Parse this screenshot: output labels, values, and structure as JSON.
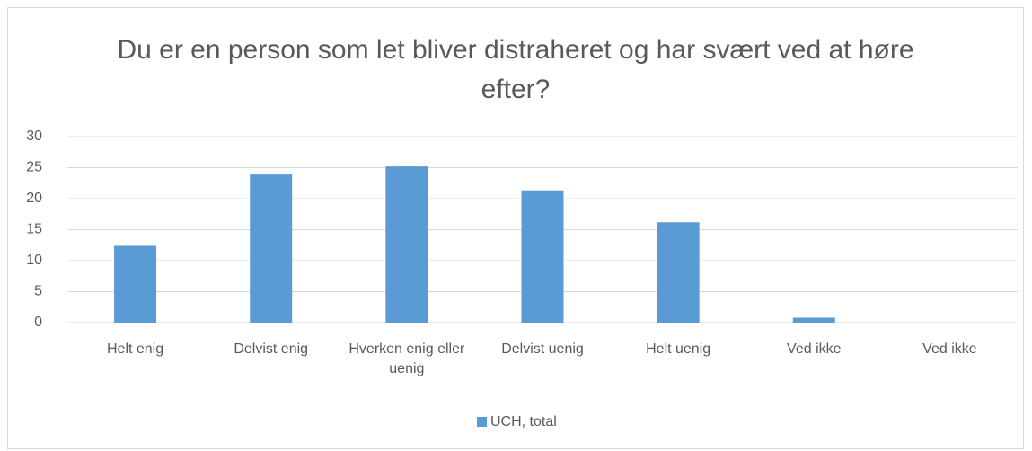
{
  "chart_data": {
    "type": "bar",
    "title": "Du er en person som let bliver distraheret og har svært ved at høre efter?",
    "categories": [
      "Helt enig",
      "Delvist enig",
      "Hverken enig eller uenig",
      "Delvist uenig",
      "Helt uenig",
      "Ved ikke",
      "Ved ikke"
    ],
    "series": [
      {
        "name": "UCH, total",
        "color": "#5b9bd5",
        "values": [
          12.4,
          23.9,
          25.2,
          21.2,
          16.2,
          0.8,
          0
        ]
      }
    ],
    "ylim": [
      0,
      30
    ],
    "yticks": [
      0,
      5,
      10,
      15,
      20,
      25,
      30
    ],
    "grid": true,
    "legend": "bottom"
  }
}
